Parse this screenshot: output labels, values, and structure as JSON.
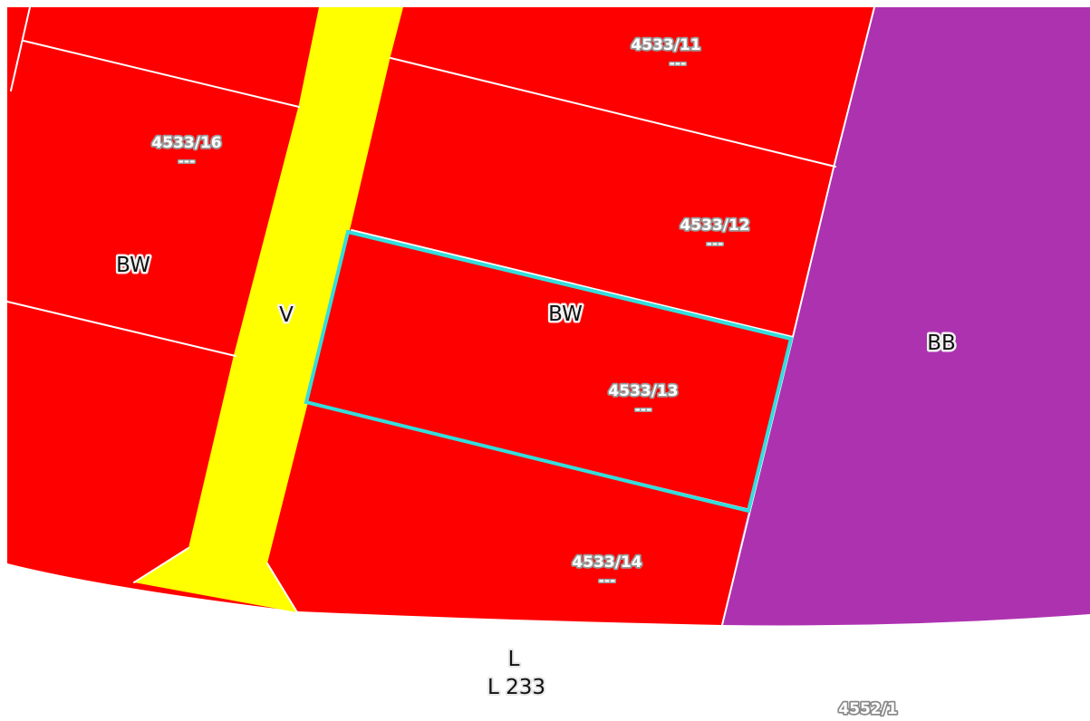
{
  "colors": {
    "residential_zone": "#ff0000",
    "road_zone": "#ffff00",
    "commercial_zone": "#ad32b0",
    "parcel_border": "#ffffff",
    "selection_outline": "#33dddd",
    "background": "#ffffff"
  },
  "parcels": [
    {
      "number": "4533/11",
      "sub": "---"
    },
    {
      "number": "4533/16",
      "sub": "---"
    },
    {
      "number": "4533/12",
      "sub": "---"
    },
    {
      "number": "4533/13",
      "sub": "---"
    },
    {
      "number": "4533/14",
      "sub": "---"
    }
  ],
  "zones": {
    "bw_left": "BW",
    "bw_center": "BW",
    "v": "V",
    "bb": "BB"
  },
  "road": {
    "code": "L",
    "name": "L 233"
  },
  "other_parcel": "4552/1",
  "selected_parcel": "4533/13"
}
